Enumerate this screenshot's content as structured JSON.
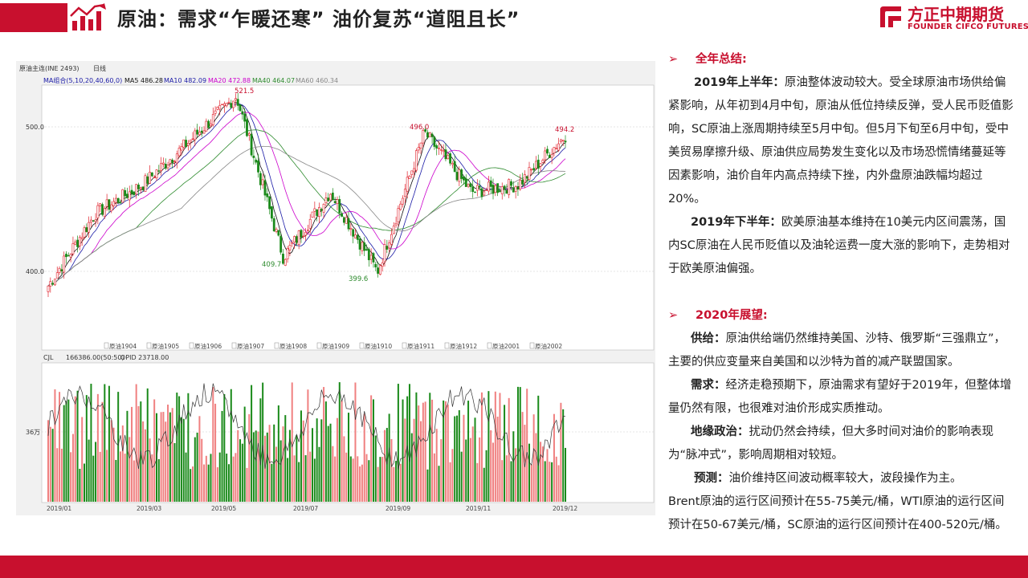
{
  "slide": {
    "title": "原油：需求“乍暖还寒”  油价复苏“道阻且长”",
    "logo_main": "方正中期期货",
    "logo_sub": "FOUNDER CIFCO FUTURES",
    "brand_color": "#c8102e"
  },
  "chart_header": {
    "instrument": "原油主连(INE 2493)",
    "period": "日线",
    "ma_label": "MA组合(5,10,20,40,60,0)",
    "ma5": "MA5 486.28",
    "ma10": "MA10 482.09",
    "ma20": "MA20 472.88",
    "ma40": "MA40 464.07",
    "ma60": "MA60 460.34",
    "vol_label": "CJL",
    "vol_value": "166386.00(50:50)",
    "opid": "OPID 23718.00",
    "vol_tick": "36万"
  },
  "chart_data": {
    "type": "candlestick",
    "y_ticks": [
      "500.0",
      "400.0"
    ],
    "annotations": [
      "521.5",
      "409.7",
      "399.6",
      "496.0",
      "494.2"
    ],
    "contract_labels": [
      "原油1904",
      "原油1905",
      "原油1906",
      "原油1907",
      "原油1908",
      "原油1909",
      "原油1910",
      "原油1911",
      "原油1912",
      "原油2001",
      "原油2002"
    ],
    "x_labels": [
      "2019/01",
      "2019/03",
      "2019/05",
      "2019/07",
      "2019/09",
      "2019/11",
      "2019/12"
    ],
    "price_path": [
      [
        "2019/01",
        390
      ],
      [
        "2019/02",
        440
      ],
      [
        "2019/03",
        460
      ],
      [
        "2019/04",
        490
      ],
      [
        "2019/05",
        521.5
      ],
      [
        "2019/06",
        409.7
      ],
      [
        "2019/07",
        455
      ],
      [
        "2019/08",
        399.6
      ],
      [
        "2019/09",
        496.0
      ],
      [
        "2019/10",
        455
      ],
      [
        "2019/11",
        460
      ],
      [
        "2019/12",
        494.2
      ]
    ],
    "legend_colors": {
      "MA5": "#111111",
      "MA10": "#1a1aa6",
      "MA20": "#cc00cc",
      "MA40": "#2e8b2e",
      "MA60": "#888888"
    }
  },
  "text_panel": {
    "sec1_title": "全年总结:",
    "h1_label": "2019年上半年：",
    "h1_text": "原油整体波动较大。受全球原油市场供给偏紧影响，从年初到4月中旬，原油从低位持续反弹，受人民币贬值影响，SC原油上涨周期持续至5月中旬。但5月下旬至6月中旬，受中美贸易摩擦升级、原油供应局势发生变化以及市场恐慌情绪蔓延等因素影响，油价自年内高点持续下挫，内外盘原油跌幅均超过20%。",
    "h2_label": "2019年下半年：",
    "h2_text": "欧美原油基本维持在10美元内区间震荡，国内SC原油在人民币贬值以及油轮运费一度大涨的影响下，走势相对于欧美原油偏强。",
    "sec2_title": "2020年展望:",
    "supply_label": "供给：",
    "supply_text": "原油供给端仍然维持美国、沙特、俄罗斯“三强鼎立”，主要的供应变量来自美国和以沙特为首的减产联盟国家。",
    "demand_label": "需求：",
    "demand_text": "经济走稳预期下，原油需求有望好于2019年，但整体增量仍然有限，也很难对油价形成实质推动。",
    "geo_label": "地缘政治：",
    "geo_text": "扰动仍然会持续，但大多时间对油价的影响表现为“脉冲式”，影响周期相对较短。",
    "forecast_label": "预测：",
    "forecast_text": "油价维持区间波动概率较大，波段操作为主。",
    "forecast_detail": "Brent原油的运行区间预计在55-75美元/桶，WTI原油的运行区间预计在50-67美元/桶，SC原油的运行区间预计在400-520元/桶。"
  }
}
